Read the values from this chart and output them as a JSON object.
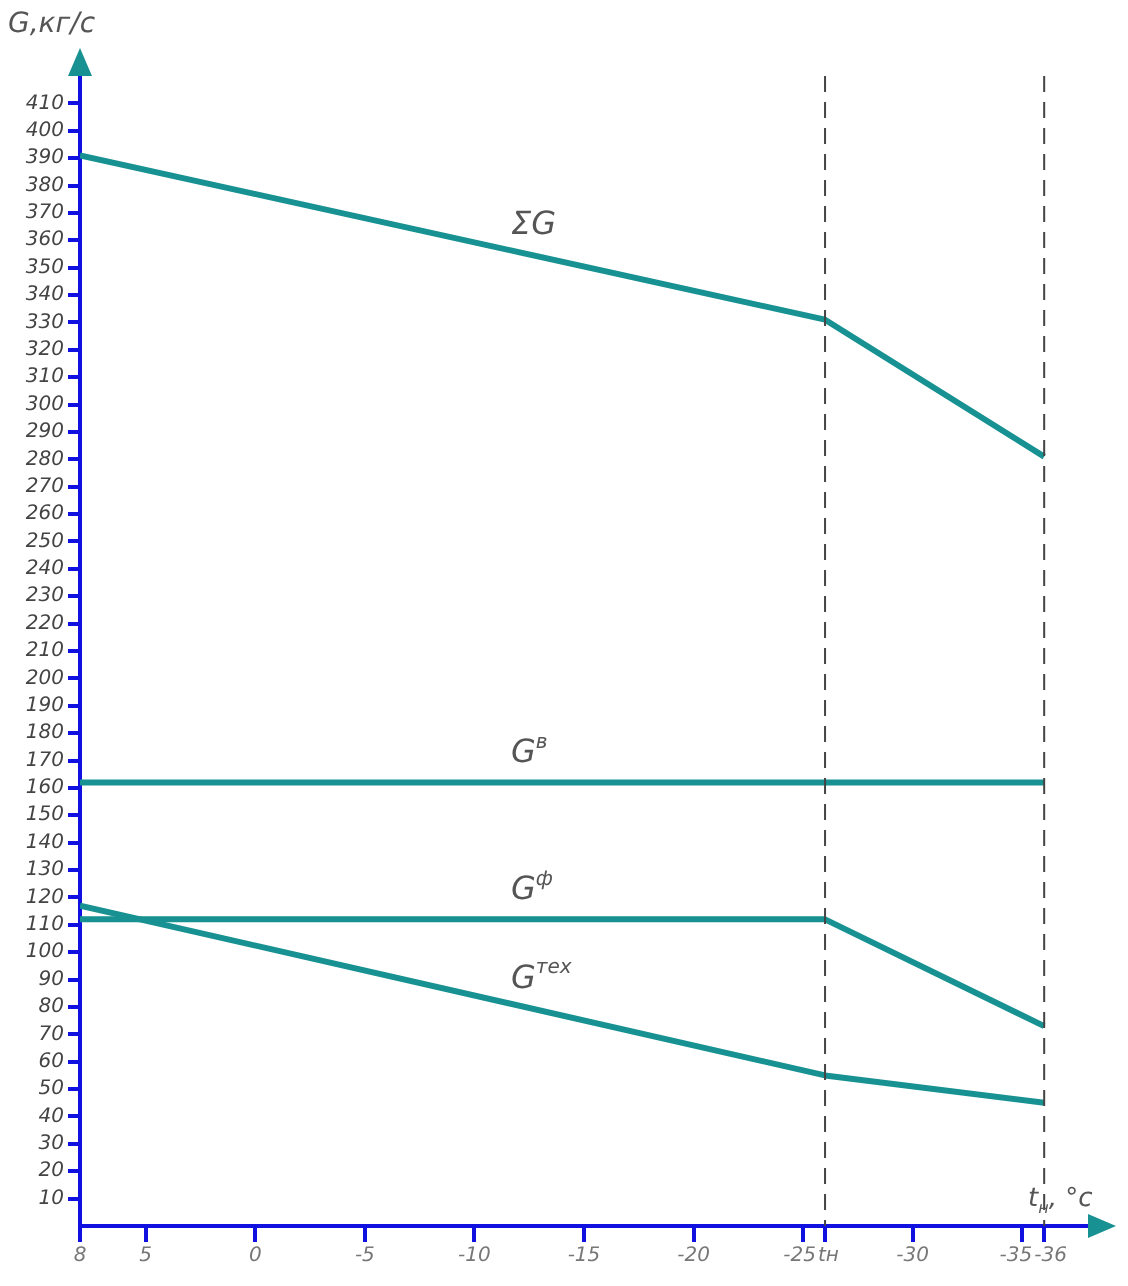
{
  "chart_data": {
    "type": "line",
    "xlabel": "t$_{н}$, °c",
    "ylabel": "G,кг/с",
    "xlim": [
      8,
      -38
    ],
    "xticks": [
      8,
      5,
      0,
      -5,
      -10,
      -15,
      -20,
      -25,
      {
        "value": -26,
        "label": "tн"
      },
      -30,
      -35,
      -36
    ],
    "ylim": [
      0,
      420
    ],
    "yticks": [
      10,
      20,
      30,
      40,
      50,
      60,
      70,
      80,
      90,
      100,
      110,
      120,
      130,
      140,
      150,
      160,
      170,
      180,
      190,
      200,
      210,
      220,
      230,
      240,
      250,
      260,
      270,
      280,
      290,
      300,
      310,
      320,
      330,
      340,
      350,
      360,
      370,
      380,
      390,
      400,
      410
    ],
    "grid": false,
    "legend": false,
    "marker": "none",
    "line_style": "solid",
    "series": [
      {
        "name": "ΣG",
        "color": "#179191",
        "x": [
          8,
          -26,
          -36
        ],
        "values": [
          391,
          331,
          281
        ]
      },
      {
        "name": "G$^{в}$",
        "color": "#179191",
        "x": [
          8,
          -26,
          -36
        ],
        "values": [
          162,
          162,
          162
        ]
      },
      {
        "name": "G$^{ф}$",
        "color": "#179191",
        "x": [
          8,
          -26,
          -36
        ],
        "values": [
          112,
          112,
          73
        ]
      },
      {
        "name": "G$^{тех}$",
        "color": "#179191",
        "x": [
          8,
          -26,
          -36
        ],
        "values": [
          117,
          55,
          45
        ]
      }
    ],
    "ref_lines": [
      {
        "axis": "x",
        "value": -26,
        "color": "#444444",
        "line_style": "dashed"
      },
      {
        "axis": "x",
        "value": -36,
        "color": "#444444",
        "line_style": "dashed"
      }
    ]
  }
}
